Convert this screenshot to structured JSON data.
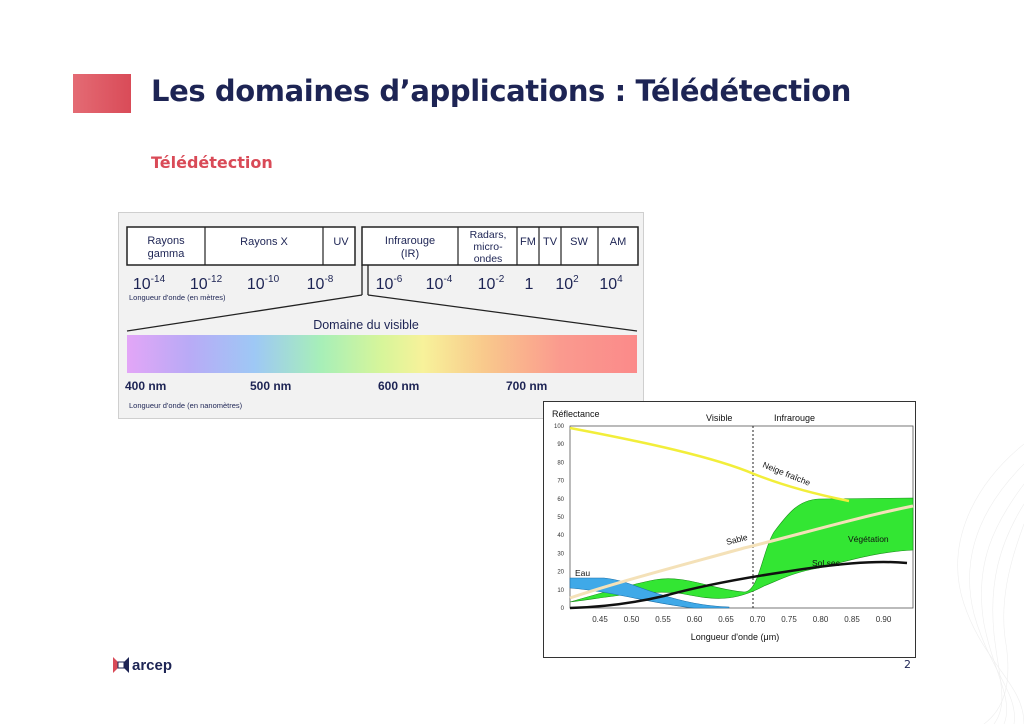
{
  "slide": {
    "title": "Les domaines d’applications : Télédétection",
    "subtitle": "Télédétection",
    "page_number": "2",
    "brand": "arcep",
    "accent_color": "#d94b58",
    "title_color": "#1d2454",
    "subtitle_color": "#d94a57"
  },
  "spectrum": {
    "bands": [
      "Rayons gamma",
      "Rayons X",
      "UV",
      "Infrarouge (IR)",
      "Radars, micro- ondes",
      "FM",
      "TV",
      "SW",
      "AM"
    ],
    "wavelength_ticks": [
      {
        "base": "10",
        "exp": "-14"
      },
      {
        "base": "10",
        "exp": "-12"
      },
      {
        "base": "10",
        "exp": "-10"
      },
      {
        "base": "10",
        "exp": "-8"
      },
      {
        "base": "10",
        "exp": "-6"
      },
      {
        "base": "10",
        "exp": "-4"
      },
      {
        "base": "10",
        "exp": "-2"
      },
      {
        "base": "1",
        "exp": ""
      },
      {
        "base": "10",
        "exp": "2"
      },
      {
        "base": "10",
        "exp": "4"
      }
    ],
    "wavelength_axis_label": "Longueur d'onde (en mètres)",
    "visible_title": "Domaine du visible",
    "visible_ticks": [
      "400 nm",
      "500 nm",
      "600 nm",
      "700 nm"
    ],
    "visible_axis_label": "Longueur d'onde (en nanomètres)"
  },
  "reflectance": {
    "ylabel": "Réflectance",
    "xlabel": "Longueur d'onde (μm)",
    "region_visible": "Visible",
    "region_infrared": "Infrarouge",
    "yticks": [
      "100",
      "90",
      "80",
      "70",
      "60",
      "50",
      "40",
      "30",
      "20",
      "10",
      "0"
    ],
    "xticks": [
      "0.45",
      "0.50",
      "0.55",
      "0.60",
      "0.65",
      "0.70",
      "0.75",
      "0.80",
      "0.85",
      "0.90"
    ],
    "labels": {
      "snow": "Neige fraîche",
      "sand": "Sable",
      "vegetation": "Végétation",
      "soil": "Sol sec",
      "water": "Eau"
    }
  }
}
